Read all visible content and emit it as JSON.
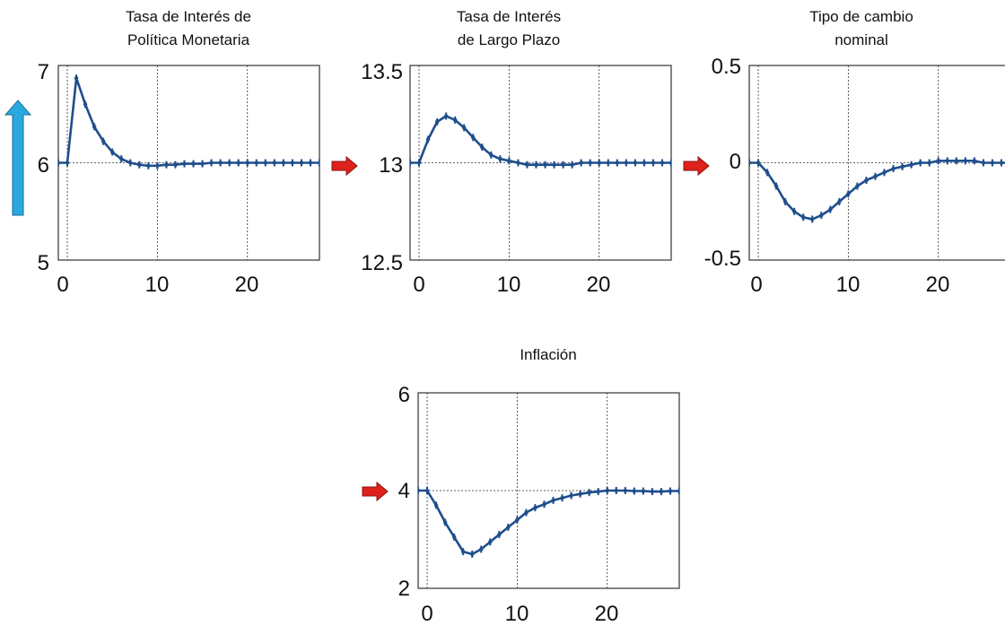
{
  "colors": {
    "series": "#1f4e8c",
    "frame": "#333333",
    "grid": "#333333",
    "up_arrow": "#29a8e0",
    "right_arrow": "#e0201b"
  },
  "chart_data": [
    {
      "type": "line",
      "title": [
        "Tasa de Interés de",
        "Política Monetaria"
      ],
      "xlim": [
        -1,
        28
      ],
      "ylim": [
        5,
        7
      ],
      "xticks": [
        0,
        10,
        20
      ],
      "yticks": [
        5,
        6,
        7
      ],
      "xtick_labels": [
        "0",
        "10",
        "20"
      ],
      "ytick_labels": [
        "5",
        "6",
        "7"
      ],
      "grid": "dotted",
      "x": [
        -1,
        0,
        1,
        2,
        3,
        4,
        5,
        6,
        7,
        8,
        9,
        10,
        11,
        12,
        13,
        14,
        15,
        16,
        17,
        18,
        19,
        20,
        21,
        22,
        23,
        24,
        25,
        26,
        27,
        28
      ],
      "y": [
        6,
        6,
        6.87,
        6.6,
        6.37,
        6.22,
        6.11,
        6.04,
        6.0,
        5.98,
        5.97,
        5.97,
        5.98,
        5.98,
        5.99,
        5.99,
        5.99,
        6.0,
        6.0,
        6.0,
        6.0,
        6.0,
        6.0,
        6.0,
        6.0,
        6.0,
        6.0,
        6.0,
        6.0,
        6.0
      ],
      "indicator": "up-arrow"
    },
    {
      "type": "line",
      "title": [
        "Tasa de Interés",
        "de Largo Plazo"
      ],
      "xlim": [
        -1,
        28
      ],
      "ylim": [
        12.5,
        13.5
      ],
      "xticks": [
        0,
        10,
        20
      ],
      "yticks": [
        12.5,
        13,
        13.5
      ],
      "xtick_labels": [
        "0",
        "10",
        "20"
      ],
      "ytick_labels": [
        "12.5",
        "13",
        "13.5"
      ],
      "grid": "dotted",
      "x": [
        -1,
        0,
        1,
        2,
        3,
        4,
        5,
        6,
        7,
        8,
        9,
        10,
        11,
        12,
        13,
        14,
        15,
        16,
        17,
        18,
        19,
        20,
        21,
        22,
        23,
        24,
        25,
        26,
        27,
        28
      ],
      "y": [
        13,
        13,
        13.12,
        13.21,
        13.24,
        13.22,
        13.18,
        13.13,
        13.08,
        13.04,
        13.02,
        13.01,
        13.0,
        12.99,
        12.99,
        12.99,
        12.99,
        12.99,
        12.99,
        13.0,
        13.0,
        13.0,
        13.0,
        13.0,
        13.0,
        13.0,
        13.0,
        13.0,
        13.0,
        13.0
      ],
      "indicator": "right-arrow"
    },
    {
      "type": "line",
      "title": [
        "Tipo de cambio",
        "nominal"
      ],
      "xlim": [
        -1,
        28
      ],
      "ylim": [
        -0.5,
        0.5
      ],
      "xticks": [
        0,
        10,
        20
      ],
      "yticks": [
        -0.5,
        0,
        0.5
      ],
      "xtick_labels": [
        "0",
        "10",
        "20"
      ],
      "ytick_labels": [
        "-0.5",
        "0",
        "0.5"
      ],
      "grid": "dotted",
      "x": [
        -1,
        0,
        1,
        2,
        3,
        4,
        5,
        6,
        7,
        8,
        9,
        10,
        11,
        12,
        13,
        14,
        15,
        16,
        17,
        18,
        19,
        20,
        21,
        22,
        23,
        24,
        25,
        26,
        27,
        28
      ],
      "y": [
        0,
        0,
        -0.05,
        -0.12,
        -0.2,
        -0.25,
        -0.28,
        -0.29,
        -0.27,
        -0.24,
        -0.2,
        -0.16,
        -0.12,
        -0.09,
        -0.07,
        -0.05,
        -0.03,
        -0.02,
        -0.01,
        0.0,
        0.0,
        0.01,
        0.01,
        0.01,
        0.01,
        0.01,
        0.0,
        0.0,
        0.0,
        0.0
      ],
      "indicator": "right-arrow"
    },
    {
      "type": "line",
      "title": [
        "Inflación"
      ],
      "xlim": [
        -1,
        28
      ],
      "ylim": [
        2,
        6
      ],
      "xticks": [
        0,
        10,
        20
      ],
      "yticks": [
        2,
        4,
        6
      ],
      "xtick_labels": [
        "0",
        "10",
        "20"
      ],
      "ytick_labels": [
        "2",
        "4",
        "6"
      ],
      "grid": "dotted",
      "x": [
        -1,
        0,
        1,
        2,
        3,
        4,
        5,
        6,
        7,
        8,
        9,
        10,
        11,
        12,
        13,
        14,
        15,
        16,
        17,
        18,
        19,
        20,
        21,
        22,
        23,
        24,
        25,
        26,
        27,
        28
      ],
      "y": [
        4,
        4,
        3.7,
        3.35,
        3.05,
        2.75,
        2.7,
        2.8,
        2.95,
        3.1,
        3.25,
        3.4,
        3.55,
        3.65,
        3.72,
        3.8,
        3.85,
        3.9,
        3.93,
        3.96,
        3.98,
        4.0,
        4.0,
        4.0,
        3.99,
        3.99,
        3.98,
        3.98,
        3.99,
        3.99
      ],
      "indicator": "right-arrow"
    }
  ]
}
